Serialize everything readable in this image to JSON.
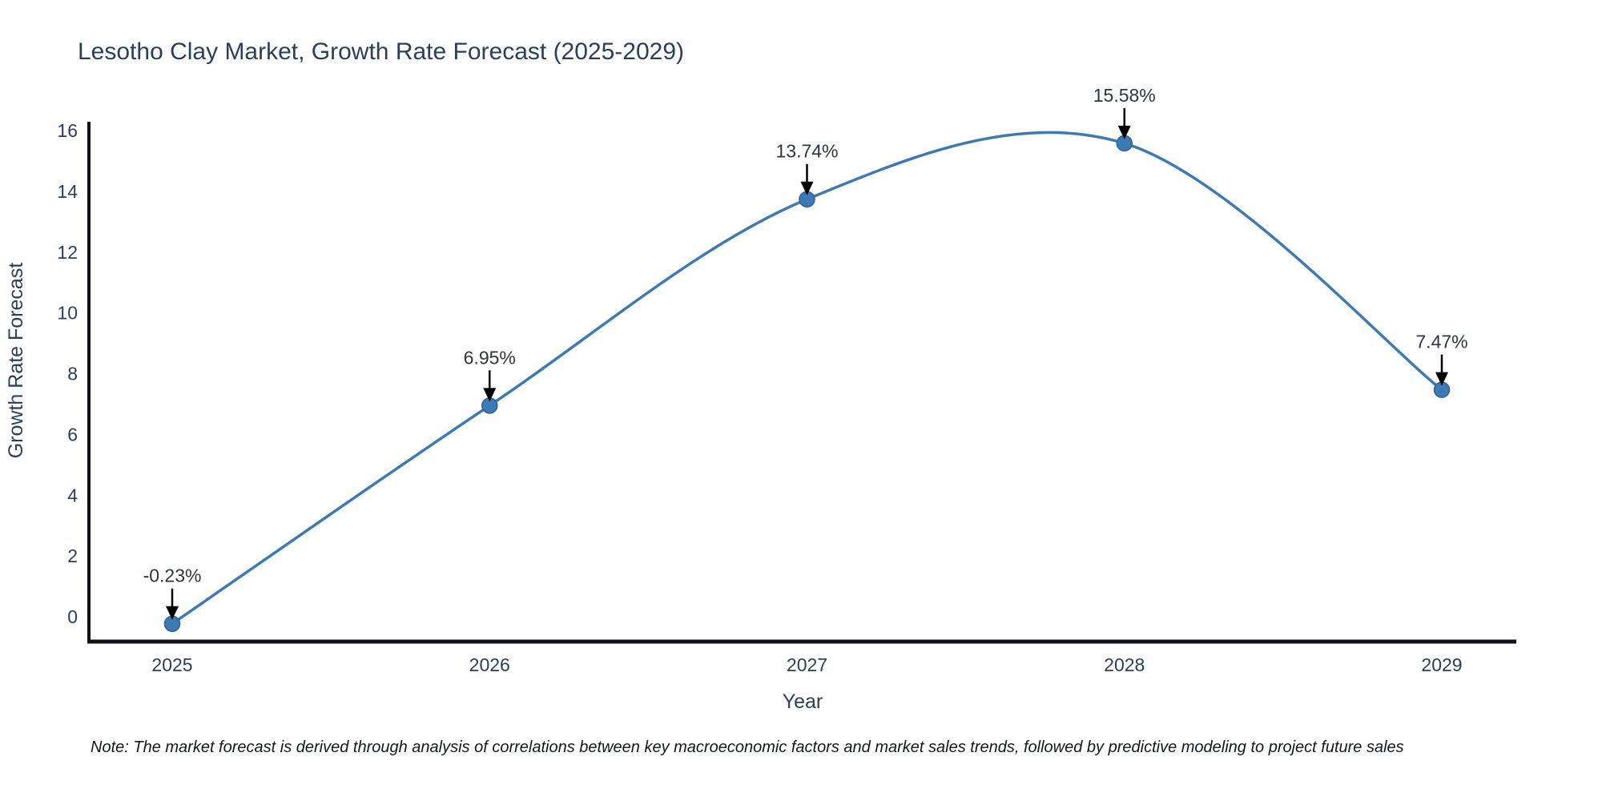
{
  "note": "Note: The market forecast is derived through analysis of correlations between key macroeconomic factors and market sales trends, followed by predictive modeling to project future sales",
  "chart_data": {
    "type": "line",
    "title": "Lesotho Clay Market, Growth Rate Forecast (2025-2029)",
    "xlabel": "Year",
    "ylabel": "Growth Rate Forecast",
    "x": [
      2025,
      2026,
      2027,
      2028,
      2029
    ],
    "y": [
      -0.23,
      6.95,
      13.74,
      15.58,
      7.47
    ],
    "point_labels": [
      "-0.23%",
      "6.95%",
      "13.74%",
      "15.58%",
      "7.47%"
    ],
    "y_ticks": [
      0,
      2,
      4,
      6,
      8,
      10,
      12,
      14,
      16
    ],
    "xlim": [
      2024.73,
      2029.23
    ],
    "ylim": [
      -0.9,
      16.3
    ],
    "grid": false,
    "line_shape": "spline",
    "legend": "none",
    "colors": {
      "line": "#3d7ab4",
      "marker": "#3d7ab4",
      "marker_edge": "#2e6195",
      "axis": "#101418",
      "text": "#2a3f5f",
      "annotation_text": "#2f3540",
      "arrow": "#000000",
      "background": "#ffffff"
    }
  }
}
